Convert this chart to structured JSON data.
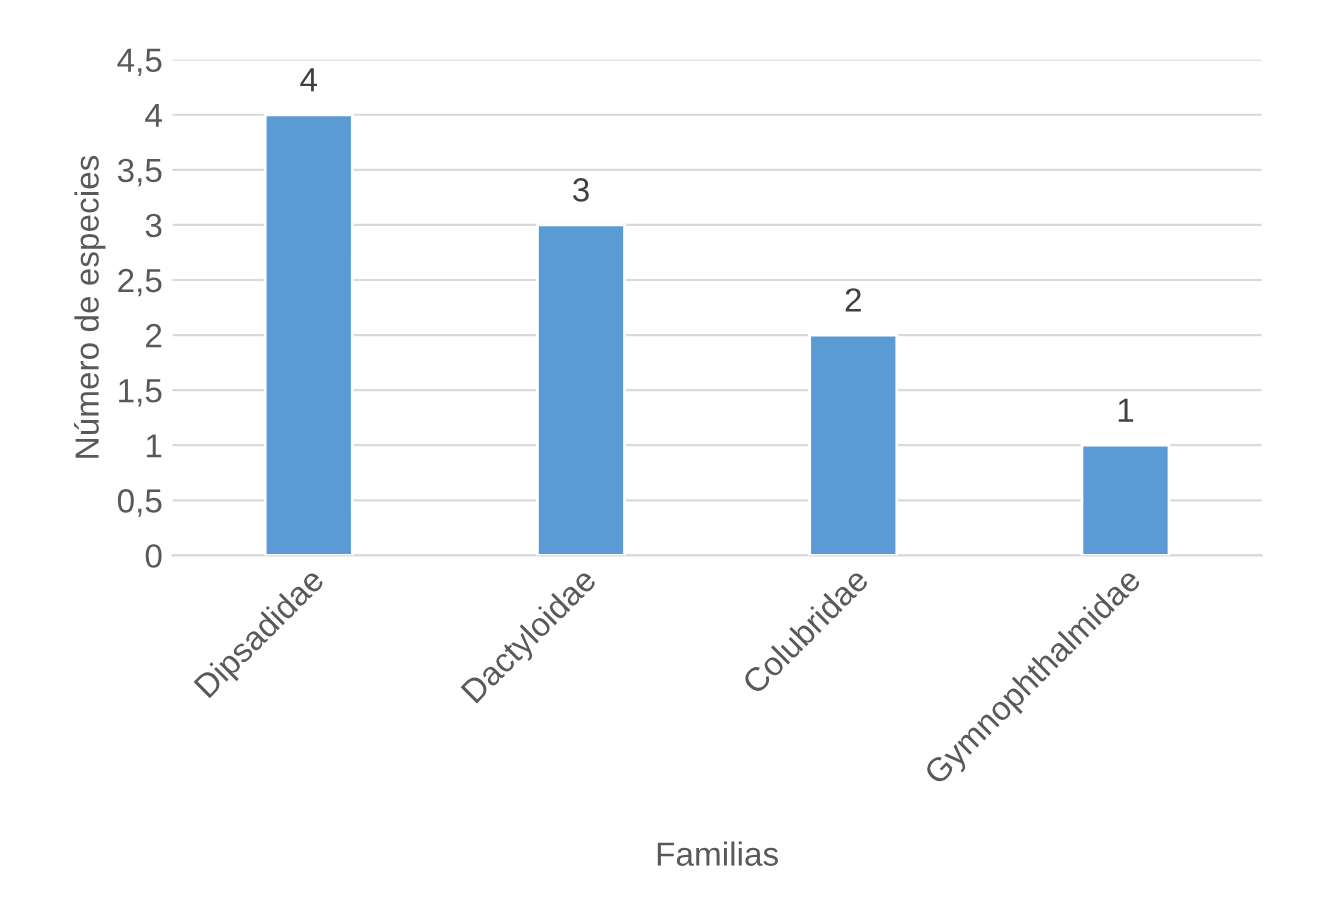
{
  "chart_data": {
    "type": "bar",
    "xlabel": "Familias",
    "ylabel": "Número de especies",
    "categories": [
      "Dipsadidae",
      "Dactyloidae",
      "Colubridae",
      "Gymnophthalmidae"
    ],
    "values": [
      4,
      3,
      2,
      1
    ],
    "color": "#5b9bd5",
    "ylim": [
      0,
      4.5
    ],
    "yticks": [
      0,
      {
        "value": 0.5,
        "label": "0,5"
      },
      1,
      {
        "value": 1.5,
        "label": "1,5"
      },
      2,
      {
        "value": 2.5,
        "label": "2,5"
      },
      3,
      {
        "value": 3.5,
        "label": "3,5"
      },
      4,
      {
        "value": 4.5,
        "label": "4,5"
      }
    ],
    "grid": "y",
    "data_labels": true
  }
}
